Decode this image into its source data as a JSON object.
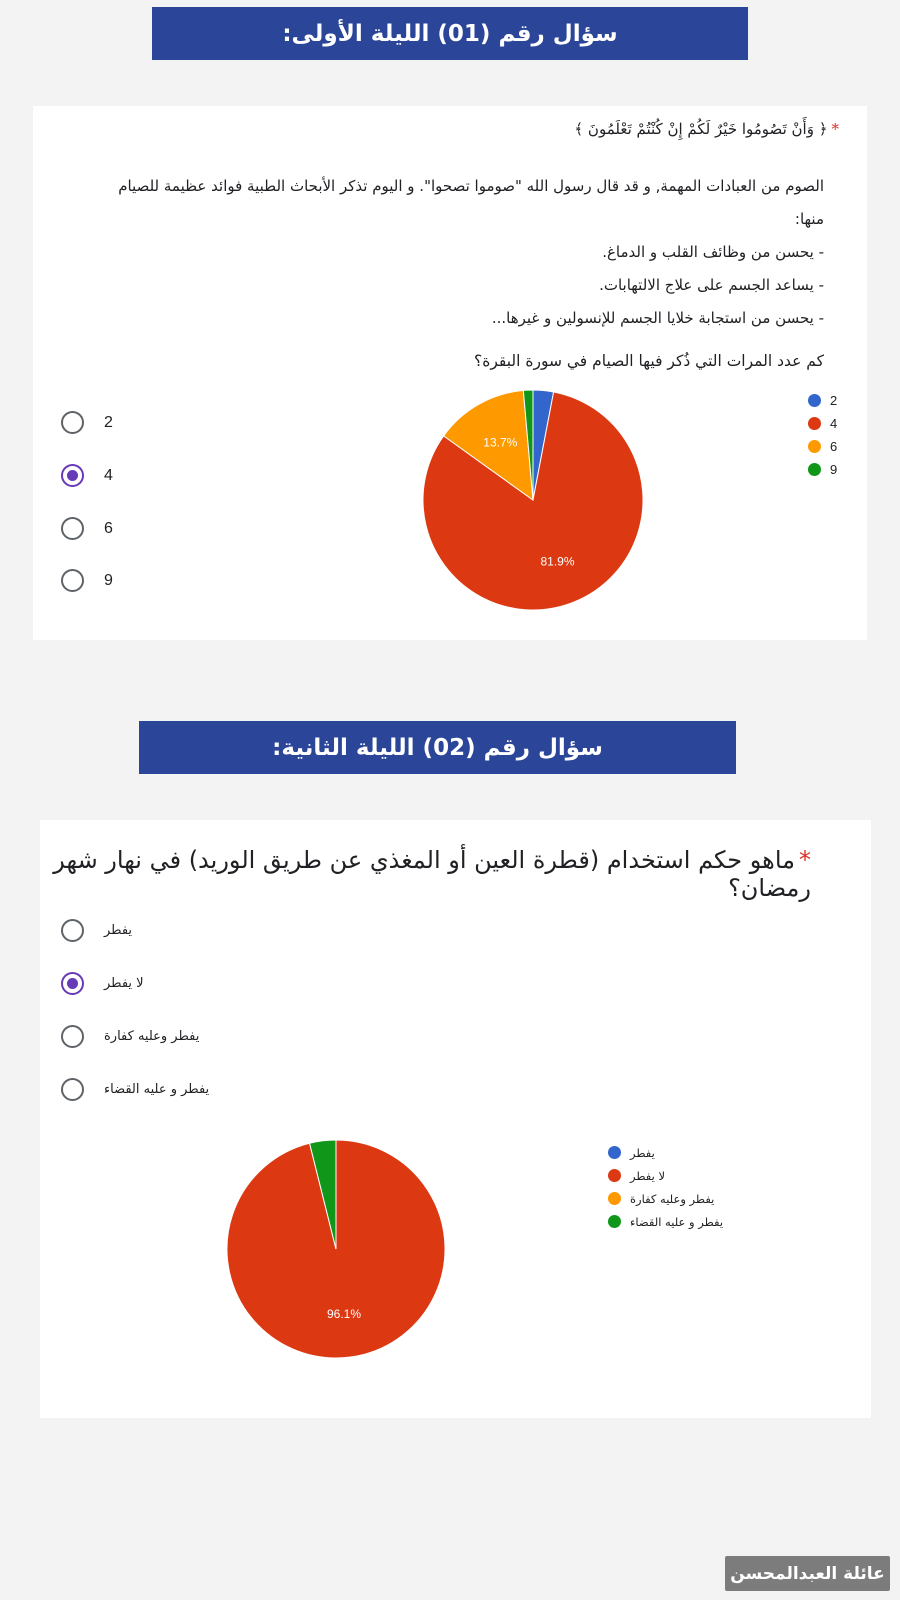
{
  "banners": {
    "q1": "سؤال رقم (01) الليلة الأولى:",
    "q2": "سؤال رقم (02) الليلة الثانية:"
  },
  "q1": {
    "required_mark": "*",
    "verse": "﴿ وَأَنْ تَصُومُوا خَيْرٌ لَكُمْ إِنْ كُنْتُمْ تَعْلَمُونَ ﴾",
    "paragraph": [
      "الصوم من العبادات المهمة, و قد قال رسول الله \"صوموا تصحوا\". و اليوم تذكر الأبحاث الطبية فوائد عظيمة للصيام",
      "منها:",
      "- يحسن من وظائف القلب و الدماغ.",
      "- يساعد الجسم على علاج الالتهابات.",
      "- يحسن من استجابة خلايا الجسم للإنسولين و غيرها..."
    ],
    "question": "كم عدد المرات التي ذُكر فيها الصيام في سورة البقرة؟",
    "options": [
      "2",
      "4",
      "6",
      "9"
    ],
    "selected_index": 1
  },
  "q2": {
    "required_mark": "*",
    "question": "ماهو حكم استخدام (قطرة العين أو المغذي عن طريق الوريد) في نهار شهر رمضان؟",
    "options": [
      "يفطر",
      "لا يفطر",
      "يفطر وعليه كفارة",
      "يفطر و عليه القضاء"
    ],
    "selected_index": 1
  },
  "chart_data": [
    {
      "type": "pie",
      "categories": [
        "2",
        "4",
        "6",
        "9"
      ],
      "values": [
        3.0,
        81.9,
        13.7,
        1.4
      ],
      "labels": [
        "",
        "81.9%",
        "13.7%",
        ""
      ],
      "colors": [
        "#3366cc",
        "#dc3912",
        "#ff9900",
        "#109618"
      ],
      "legend": "right"
    },
    {
      "type": "pie",
      "categories": [
        "يفطر",
        "لا يفطر",
        "يفطر وعليه كفارة",
        "يفطر و عليه القضاء"
      ],
      "values": [
        0,
        96.1,
        0,
        3.9
      ],
      "labels": [
        "",
        "96.1%",
        "",
        ""
      ],
      "colors": [
        "#3366cc",
        "#dc3912",
        "#ff9900",
        "#109618"
      ],
      "legend": "right"
    }
  ],
  "watermark": "عائلة العبدالمحسن"
}
